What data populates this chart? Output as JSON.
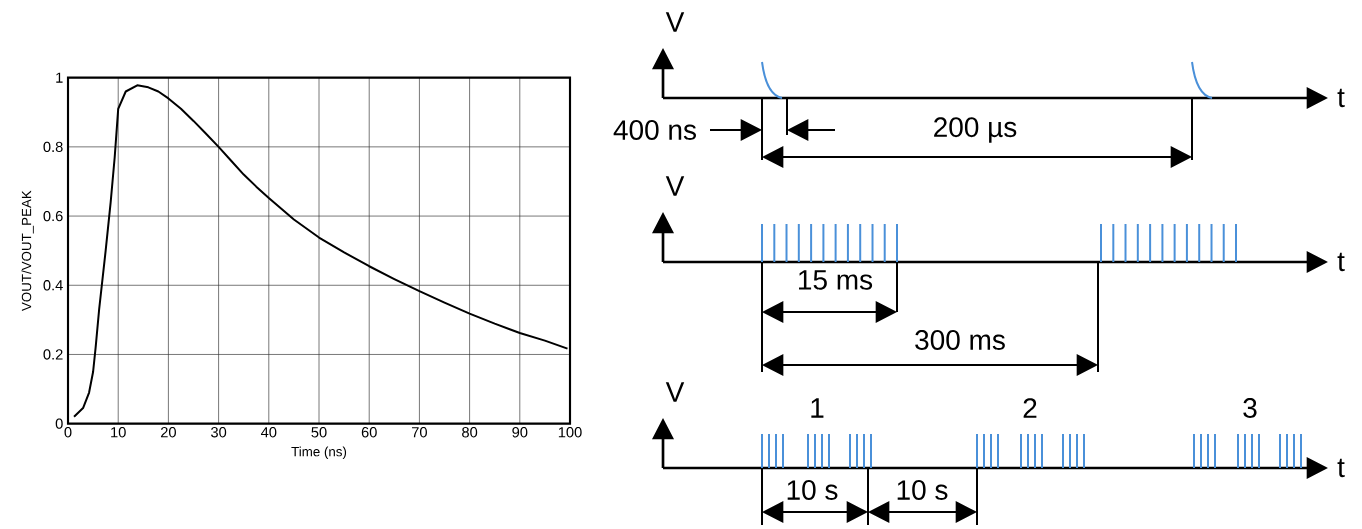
{
  "chart_data": [
    {
      "type": "line",
      "xlabel": "Time (ns)",
      "ylabel": "VOUT/VOUT_PEAK",
      "x": [
        1.2,
        3,
        4.2,
        5,
        5.5,
        6.2,
        7.5,
        8.5,
        9.3,
        10,
        11.5,
        13.8,
        16,
        18,
        20,
        22.5,
        25,
        27.5,
        30,
        32.5,
        35,
        37.5,
        40,
        45,
        50,
        55,
        60,
        65,
        70,
        75,
        80,
        85,
        90,
        95,
        99.5
      ],
      "series": [
        {
          "color": "#000000",
          "values": [
            0.02,
            0.045,
            0.09,
            0.15,
            0.22,
            0.33,
            0.5,
            0.64,
            0.77,
            0.91,
            0.96,
            0.978,
            0.972,
            0.96,
            0.94,
            0.91,
            0.875,
            0.838,
            0.8,
            0.76,
            0.72,
            0.685,
            0.652,
            0.59,
            0.538,
            0.495,
            0.455,
            0.418,
            0.383,
            0.35,
            0.318,
            0.289,
            0.262,
            0.24,
            0.217
          ]
        }
      ],
      "xlim": [
        0,
        100
      ],
      "xticks": [
        0,
        10,
        20,
        30,
        40,
        50,
        60,
        70,
        80,
        90,
        100
      ],
      "ylim": [
        0,
        1
      ],
      "yticks": [
        0,
        0.2,
        0.4,
        0.6,
        0.8,
        1
      ],
      "grid": true
    },
    {
      "type": "other",
      "annotations": [
        "V",
        "V",
        "V",
        "t",
        "t",
        "t",
        "400 ns",
        "200 µs",
        "15 ms",
        "300 ms",
        "1",
        "2",
        "3",
        "10 s",
        "10 s"
      ]
    }
  ]
}
